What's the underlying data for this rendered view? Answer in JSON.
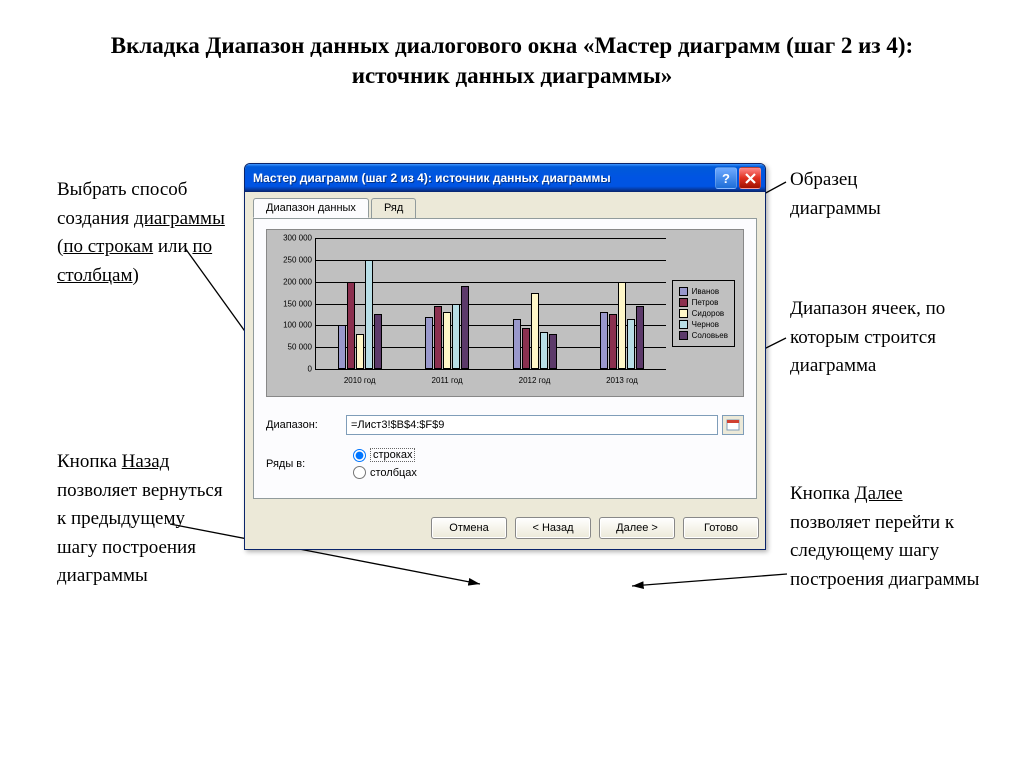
{
  "title": "Вкладка Диапазон данных диалогового окна «Мастер диаграмм (шаг 2 из 4): источник данных диаграммы»",
  "annotations": {
    "left1": "Выбрать способ создания диаграммы (по строкам или по столбцам)",
    "left2": "Кнопка Назад позволяет вернуться к предыдущему шагу построения диаграммы",
    "right1": "Образец диаграммы",
    "right2": "Диапазон ячеек, по которым строится диаграмма",
    "right3": "Кнопка Далее позволяет перейти к следующему шагу построения диаграммы"
  },
  "dialog": {
    "titlebar": "Мастер диаграмм (шаг 2 из 4): источник данных диаграммы",
    "tabs": {
      "t1": "Диапазон данных",
      "t2": "Ряд"
    },
    "range_label": "Диапазон:",
    "range_value": "=Лист3!$B$4:$F$9",
    "rows_label": "Ряды в:",
    "radio_rows": "строках",
    "radio_cols": "столбцах",
    "buttons": {
      "cancel": "Отмена",
      "back": "< Назад",
      "next": "Далее >",
      "finish": "Готово"
    }
  },
  "chart": {
    "type": "bar",
    "background_color": "#c0c0c0",
    "grid_color": "#000000",
    "ymax": 300000,
    "ystep": 50000,
    "yticks": [
      "0",
      "50 000",
      "100 000",
      "150 000",
      "200 000",
      "250 000",
      "300 000"
    ],
    "categories": [
      "2010 год",
      "2011 год",
      "2012 год",
      "2013 год"
    ],
    "series": [
      {
        "name": "Иванов",
        "color": "#9998cc"
      },
      {
        "name": "Петров",
        "color": "#8b304f"
      },
      {
        "name": "Сидоров",
        "color": "#fff7c8"
      },
      {
        "name": "Чернов",
        "color": "#b8dee6"
      },
      {
        "name": "Соловьев",
        "color": "#5c3a6a"
      }
    ],
    "data": [
      [
        100000,
        200000,
        80000,
        250000,
        125000
      ],
      [
        120000,
        145000,
        130000,
        150000,
        190000
      ],
      [
        115000,
        95000,
        175000,
        85000,
        80000
      ],
      [
        130000,
        125000,
        200000,
        115000,
        145000
      ]
    ]
  }
}
